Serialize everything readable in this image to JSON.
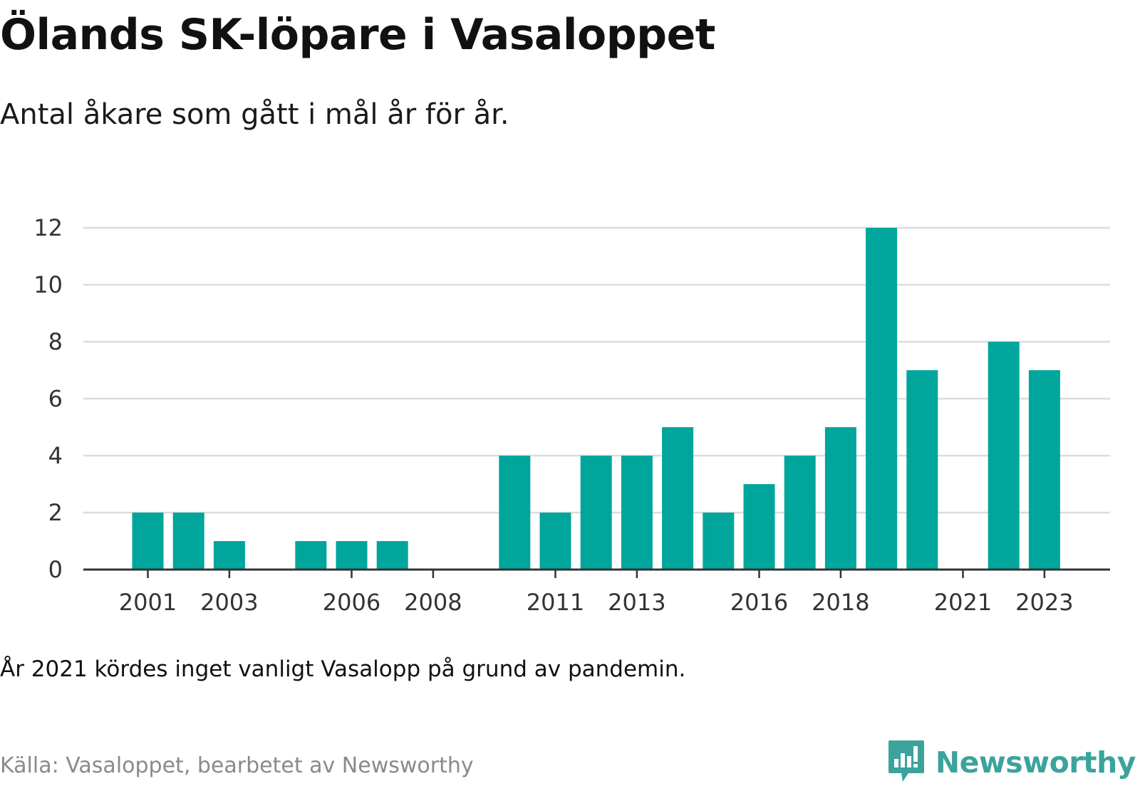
{
  "header": {
    "title": "Ölands SK-löpare i Vasaloppet",
    "subtitle": "Antal åkare som gått i mål år för år."
  },
  "footer": {
    "note": "År 2021 kördes inget vanligt Vasalopp på grund av pandemin.",
    "source": "Källa: Vasaloppet, bearbetet av Newsworthy",
    "brand": "Newsworthy",
    "brand_icon": "newsworthy-logo-icon"
  },
  "colors": {
    "bar": "#00a69b",
    "grid": "#dcdcdc",
    "axis": "#333333",
    "brand": "#3ba39c"
  },
  "chart_data": {
    "type": "bar",
    "title": "Ölands SK-löpare i Vasaloppet",
    "subtitle": "Antal åkare som gått i mål år för år.",
    "xlabel": "",
    "ylabel": "",
    "categories": [
      2001,
      2002,
      2003,
      2004,
      2005,
      2006,
      2007,
      2008,
      2009,
      2010,
      2011,
      2012,
      2013,
      2014,
      2015,
      2016,
      2017,
      2018,
      2019,
      2020,
      2021,
      2022,
      2023
    ],
    "values": [
      2,
      2,
      1,
      0,
      1,
      1,
      1,
      0,
      0,
      4,
      2,
      4,
      4,
      5,
      2,
      3,
      4,
      5,
      12,
      7,
      0,
      8,
      7
    ],
    "x_tick_labels": [
      "2001",
      "2003",
      "2006",
      "2008",
      "2011",
      "2013",
      "2016",
      "2018",
      "2021",
      "2023"
    ],
    "y_ticks": [
      0,
      2,
      4,
      6,
      8,
      10,
      12
    ],
    "ylim": [
      0,
      12
    ],
    "grid": true,
    "legend": "none"
  }
}
